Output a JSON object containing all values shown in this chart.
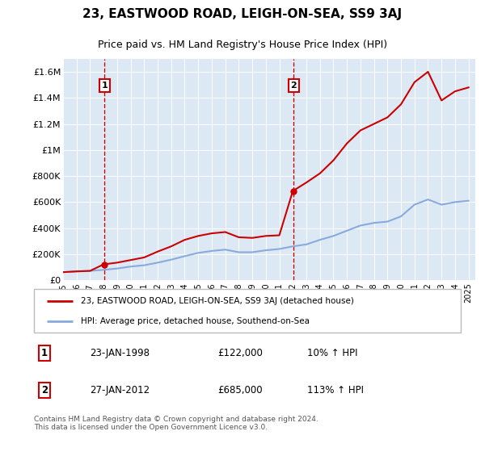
{
  "title": "23, EASTWOOD ROAD, LEIGH-ON-SEA, SS9 3AJ",
  "subtitle": "Price paid vs. HM Land Registry's House Price Index (HPI)",
  "title_fontsize": 11,
  "subtitle_fontsize": 9,
  "background_color": "#ffffff",
  "plot_bg_color": "#dce9f5",
  "grid_color": "#ffffff",
  "ylim": [
    0,
    1700000
  ],
  "yticks": [
    0,
    200000,
    400000,
    600000,
    800000,
    1000000,
    1200000,
    1400000,
    1600000
  ],
  "ytick_labels": [
    "£0",
    "£200K",
    "£400K",
    "£600K",
    "£800K",
    "£1M",
    "£1.2M",
    "£1.4M",
    "£1.6M"
  ],
  "sale_prices": [
    122000,
    685000
  ],
  "sale_color": "#cc0000",
  "hpi_color": "#88aadd",
  "legend_label_price": "23, EASTWOOD ROAD, LEIGH-ON-SEA, SS9 3AJ (detached house)",
  "legend_label_hpi": "HPI: Average price, detached house, Southend-on-Sea",
  "annotation1_text": "23-JAN-1998",
  "annotation1_price": "£122,000",
  "annotation1_hpi": "10% ↑ HPI",
  "annotation2_text": "27-JAN-2012",
  "annotation2_price": "£685,000",
  "annotation2_hpi": "113% ↑ HPI",
  "footer": "Contains HM Land Registry data © Crown copyright and database right 2024.\nThis data is licensed under the Open Government Licence v3.0.",
  "hpi_years": [
    1995,
    1996,
    1997,
    1998,
    1999,
    2000,
    2001,
    2002,
    2003,
    2004,
    2005,
    2006,
    2007,
    2008,
    2009,
    2010,
    2011,
    2012,
    2013,
    2014,
    2015,
    2016,
    2017,
    2018,
    2019,
    2020,
    2021,
    2022,
    2023,
    2024,
    2025
  ],
  "hpi_values": [
    62000,
    68000,
    72000,
    80000,
    90000,
    105000,
    115000,
    135000,
    158000,
    185000,
    210000,
    225000,
    235000,
    215000,
    215000,
    230000,
    240000,
    260000,
    275000,
    310000,
    340000,
    380000,
    420000,
    440000,
    450000,
    490000,
    580000,
    620000,
    580000,
    600000,
    610000
  ],
  "price_years": [
    1995,
    1996,
    1997,
    1998,
    1999,
    2000,
    2001,
    2002,
    2003,
    2004,
    2005,
    2006,
    2007,
    2008,
    2009,
    2010,
    2011,
    2012,
    2013,
    2014,
    2015,
    2016,
    2017,
    2018,
    2019,
    2020,
    2021,
    2022,
    2023,
    2024,
    2025
  ],
  "price_values": [
    62000,
    68000,
    72000,
    122000,
    135000,
    155000,
    175000,
    220000,
    260000,
    310000,
    340000,
    360000,
    370000,
    330000,
    325000,
    340000,
    345000,
    685000,
    750000,
    820000,
    920000,
    1050000,
    1150000,
    1200000,
    1250000,
    1350000,
    1520000,
    1600000,
    1380000,
    1450000,
    1480000
  ],
  "sale1_x": 1998.06,
  "sale2_x": 2012.07,
  "xlim_start": 1995.0,
  "xlim_end": 2025.5,
  "xtick_years": [
    1995,
    1996,
    1997,
    1998,
    1999,
    2000,
    2001,
    2002,
    2003,
    2004,
    2005,
    2006,
    2007,
    2008,
    2009,
    2010,
    2011,
    2012,
    2013,
    2014,
    2015,
    2016,
    2017,
    2018,
    2019,
    2020,
    2021,
    2022,
    2023,
    2024,
    2025
  ]
}
